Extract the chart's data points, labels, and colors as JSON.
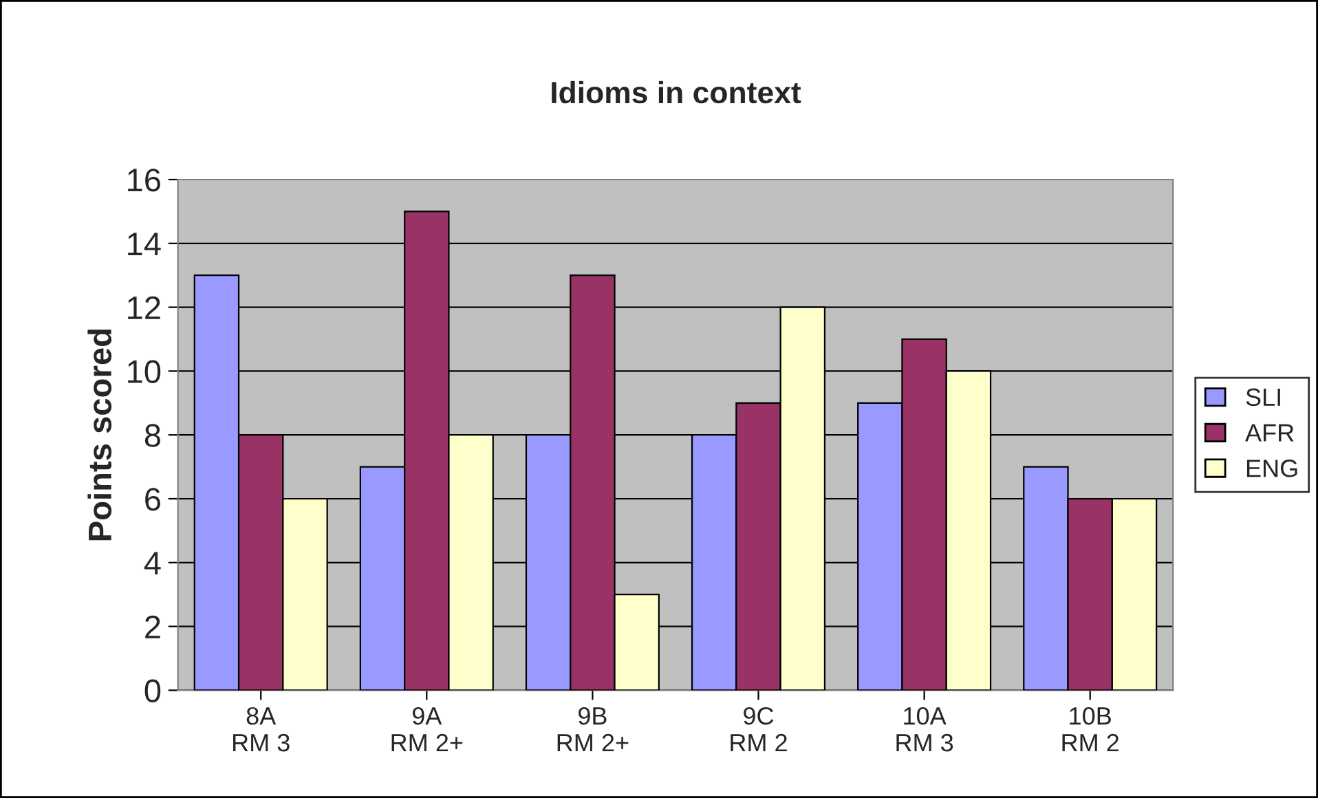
{
  "chart_data": {
    "type": "bar",
    "title": "Idioms in context",
    "ylabel": "Points scored",
    "categories": [
      "8A\nRM 3",
      "9A\nRM 2+",
      "9B\nRM 2+",
      "9C\nRM 2",
      "10A\nRM 3",
      "10B\nRM 2"
    ],
    "series": [
      {
        "name": "SLI",
        "color": "#9999ff",
        "values": [
          13,
          7,
          8,
          8,
          9,
          7
        ]
      },
      {
        "name": "AFR",
        "color": "#993366",
        "values": [
          8,
          15,
          13,
          9,
          11,
          6
        ]
      },
      {
        "name": "ENG",
        "color": "#ffffcc",
        "values": [
          6,
          8,
          3,
          12,
          10,
          6
        ]
      }
    ],
    "ylim": [
      0,
      16
    ],
    "yticks": [
      0,
      2,
      4,
      6,
      8,
      10,
      12,
      14,
      16
    ],
    "grid": "y",
    "legend": "right"
  }
}
